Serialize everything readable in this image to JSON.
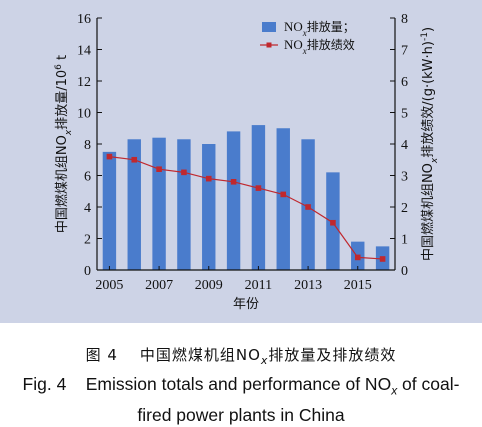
{
  "chart_data": {
    "type": "bar+line",
    "categories": [
      "2005",
      "2006",
      "2007",
      "2008",
      "2009",
      "2010",
      "2011",
      "2012",
      "2013",
      "2014",
      "2015",
      "2016"
    ],
    "x_tick_labels": [
      "2005",
      "2007",
      "2009",
      "2011",
      "2013",
      "2015"
    ],
    "series": [
      {
        "name_main": "NO",
        "name_sub": "x",
        "name_suffix": "排放量；",
        "type": "bar",
        "axis": "left",
        "color": "#4a7ccc",
        "values": [
          7.5,
          8.3,
          8.4,
          8.3,
          8.0,
          8.8,
          9.2,
          9.0,
          8.3,
          6.2,
          1.8,
          1.5
        ]
      },
      {
        "name_main": "NO",
        "name_sub": "x",
        "name_suffix": "排放绩效",
        "type": "line",
        "axis": "right",
        "color": "#c0282e",
        "values": [
          3.6,
          3.5,
          3.2,
          3.1,
          2.9,
          2.8,
          2.6,
          2.4,
          2.0,
          1.5,
          0.4,
          0.35
        ]
      }
    ],
    "xlabel": "年份",
    "ylabel_left": {
      "pre": "中国燃煤机组NO",
      "sub": "x",
      "mid": "排放量/10",
      "sup": "6",
      "post": " t"
    },
    "ylabel_right": {
      "pre": "中国燃煤机组NO",
      "sub": "x",
      "post": "排放绩效/(g·(kW·h)",
      "sup": "-1",
      "end": ")"
    },
    "ylim_left": [
      0,
      16
    ],
    "yticks_left": [
      0,
      2,
      4,
      6,
      8,
      10,
      12,
      14,
      16
    ],
    "ylim_right": [
      0,
      8
    ],
    "yticks_right": [
      0,
      1,
      2,
      3,
      4,
      5,
      6,
      7,
      8
    ],
    "legend": "top-right",
    "grid": false
  },
  "caption": {
    "cn_label": "图 4",
    "cn_title_pre": "中国燃煤机组NO",
    "cn_title_sub": "x",
    "cn_title_post": "排放量及排放绩效",
    "en_line1_pre": "Fig. 4    Emission totals and performance of NO",
    "en_line1_sub": "x",
    "en_line1_post": " of coal-",
    "en_line2": "fired power plants in China"
  }
}
